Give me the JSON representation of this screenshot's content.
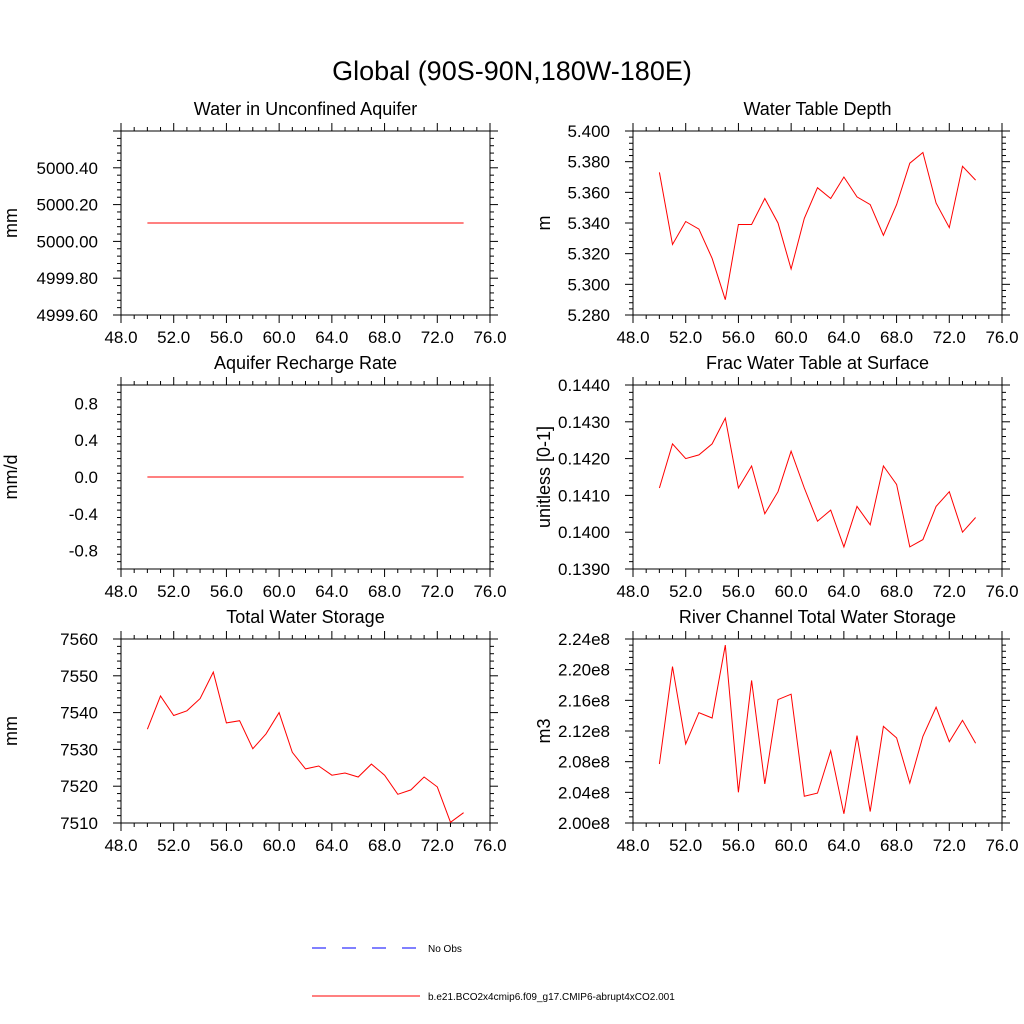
{
  "page_title": "Global (90S-90N,180W-180E)",
  "colors": {
    "model": "#ff0000",
    "obs": "#0000ff",
    "axis": "#000000"
  },
  "legend": {
    "obs_label": "No Obs",
    "model_label": "b.e21.BCO2x4cmip6.f09_g17.CMIP6-abrupt4xCO2.001"
  },
  "chart_data": [
    {
      "type": "line",
      "title": "Water in Unconfined Aquifer",
      "ylabel": "mm",
      "xlim": [
        48,
        76
      ],
      "ylim": [
        4999.6,
        5000.6
      ],
      "xticks": [
        48,
        52,
        56,
        60,
        64,
        68,
        72,
        76
      ],
      "xtick_labels": [
        "48.0",
        "52.0",
        "56.0",
        "60.0",
        "64.0",
        "68.0",
        "72.0",
        "76.0"
      ],
      "yticks": [
        4999.6,
        4999.8,
        5000.0,
        5000.2,
        5000.4
      ],
      "ytick_labels": [
        "4999.60",
        "4999.80",
        "5000.00",
        "5000.20",
        "5000.40"
      ],
      "series": [
        {
          "x": [
            50,
            74
          ],
          "values": [
            5000.1,
            5000.1
          ]
        }
      ]
    },
    {
      "type": "line",
      "title": "Water Table Depth",
      "ylabel": "m",
      "xlim": [
        48,
        76
      ],
      "ylim": [
        5.28,
        5.4
      ],
      "xticks": [
        48,
        52,
        56,
        60,
        64,
        68,
        72,
        76
      ],
      "xtick_labels": [
        "48.0",
        "52.0",
        "56.0",
        "60.0",
        "64.0",
        "68.0",
        "72.0",
        "76.0"
      ],
      "yticks": [
        5.28,
        5.3,
        5.32,
        5.34,
        5.36,
        5.38,
        5.4
      ],
      "ytick_labels": [
        "5.280",
        "5.300",
        "5.320",
        "5.340",
        "5.360",
        "5.380",
        "5.400"
      ],
      "series": [
        {
          "x": [
            50,
            51,
            52,
            53,
            54,
            55,
            56,
            57,
            58,
            59,
            60,
            61,
            62,
            63,
            64,
            65,
            66,
            67,
            68,
            69,
            70,
            71,
            72,
            73,
            74
          ],
          "values": [
            5.373,
            5.326,
            5.341,
            5.336,
            5.317,
            5.29,
            5.339,
            5.339,
            5.356,
            5.34,
            5.31,
            5.343,
            5.363,
            5.356,
            5.37,
            5.357,
            5.352,
            5.332,
            5.352,
            5.379,
            5.386,
            5.353,
            5.337,
            5.377,
            5.368
          ]
        }
      ]
    },
    {
      "type": "line",
      "title": "Aquifer Recharge Rate",
      "ylabel": "mm/d",
      "xlim": [
        48,
        76
      ],
      "ylim": [
        -1.0,
        1.0
      ],
      "xticks": [
        48,
        52,
        56,
        60,
        64,
        68,
        72,
        76
      ],
      "xtick_labels": [
        "48.0",
        "52.0",
        "56.0",
        "60.0",
        "64.0",
        "68.0",
        "72.0",
        "76.0"
      ],
      "yticks": [
        -0.8,
        -0.4,
        0.0,
        0.4,
        0.8
      ],
      "ytick_labels": [
        "-0.8",
        "-0.4",
        "0.0",
        "0.4",
        "0.8"
      ],
      "series": [
        {
          "x": [
            50,
            74
          ],
          "values": [
            0.0,
            0.0
          ]
        }
      ]
    },
    {
      "type": "line",
      "title": "Frac Water Table at Surface",
      "ylabel": "unitless [0-1]",
      "xlim": [
        48,
        76
      ],
      "ylim": [
        0.139,
        0.144
      ],
      "xticks": [
        48,
        52,
        56,
        60,
        64,
        68,
        72,
        76
      ],
      "xtick_labels": [
        "48.0",
        "52.0",
        "56.0",
        "60.0",
        "64.0",
        "68.0",
        "72.0",
        "76.0"
      ],
      "yticks": [
        0.139,
        0.14,
        0.141,
        0.142,
        0.143,
        0.144
      ],
      "ytick_labels": [
        "0.1390",
        "0.1400",
        "0.1410",
        "0.1420",
        "0.1430",
        "0.1440"
      ],
      "series": [
        {
          "x": [
            50,
            51,
            52,
            53,
            54,
            55,
            56,
            57,
            58,
            59,
            60,
            61,
            62,
            63,
            64,
            65,
            66,
            67,
            68,
            69,
            70,
            71,
            72,
            73,
            74
          ],
          "values": [
            0.1412,
            0.1424,
            0.142,
            0.1421,
            0.1424,
            0.1431,
            0.1412,
            0.1418,
            0.1405,
            0.1411,
            0.1422,
            0.1412,
            0.1403,
            0.1406,
            0.1396,
            0.1407,
            0.1402,
            0.1418,
            0.1413,
            0.1396,
            0.1398,
            0.1407,
            0.1411,
            0.14,
            0.1404
          ]
        }
      ]
    },
    {
      "type": "line",
      "title": "Total Water Storage",
      "ylabel": "mm",
      "xlim": [
        48,
        76
      ],
      "ylim": [
        7510,
        7560
      ],
      "xticks": [
        48,
        52,
        56,
        60,
        64,
        68,
        72,
        76
      ],
      "xtick_labels": [
        "48.0",
        "52.0",
        "56.0",
        "60.0",
        "64.0",
        "68.0",
        "72.0",
        "76.0"
      ],
      "yticks": [
        7510,
        7520,
        7530,
        7540,
        7550,
        7560
      ],
      "ytick_labels": [
        "7510",
        "7520",
        "7530",
        "7540",
        "7550",
        "7560"
      ],
      "series": [
        {
          "x": [
            50,
            51,
            52,
            53,
            54,
            55,
            56,
            57,
            58,
            59,
            60,
            61,
            62,
            63,
            64,
            65,
            66,
            67,
            68,
            69,
            70,
            71,
            72,
            73,
            74
          ],
          "values": [
            7535.5,
            7544.5,
            7539.2,
            7540.5,
            7543.8,
            7551.0,
            7537.2,
            7537.8,
            7530.2,
            7534.2,
            7540.0,
            7529.2,
            7524.7,
            7525.5,
            7523.0,
            7523.6,
            7522.5,
            7526.0,
            7523.0,
            7517.8,
            7519.0,
            7522.5,
            7519.8,
            7510.2,
            7512.8
          ]
        }
      ]
    },
    {
      "type": "line",
      "title": "River Channel Total Water Storage",
      "ylabel": "m3",
      "xlim": [
        48,
        76
      ],
      "ylim": [
        200000000.0,
        224000000.0
      ],
      "xticks": [
        48,
        52,
        56,
        60,
        64,
        68,
        72,
        76
      ],
      "xtick_labels": [
        "48.0",
        "52.0",
        "56.0",
        "60.0",
        "64.0",
        "68.0",
        "72.0",
        "76.0"
      ],
      "yticks": [
        200000000.0,
        204000000.0,
        208000000.0,
        212000000.0,
        216000000.0,
        220000000.0,
        224000000.0
      ],
      "ytick_labels": [
        "2.00e8",
        "2.04e8",
        "2.08e8",
        "2.12e8",
        "2.16e8",
        "2.20e8",
        "2.24e8"
      ],
      "series": [
        {
          "x": [
            50,
            51,
            52,
            53,
            54,
            55,
            56,
            57,
            58,
            59,
            60,
            61,
            62,
            63,
            64,
            65,
            66,
            67,
            68,
            69,
            70,
            71,
            72,
            73,
            74
          ],
          "values": [
            207700000.0,
            220400000.0,
            210300000.0,
            214400000.0,
            213700000.0,
            223200000.0,
            204000000.0,
            218600000.0,
            205100000.0,
            216100000.0,
            216800000.0,
            203500000.0,
            203900000.0,
            209400000.0,
            201200000.0,
            211400000.0,
            201500000.0,
            212600000.0,
            211100000.0,
            205200000.0,
            211300000.0,
            215100000.0,
            210600000.0,
            213400000.0,
            210400000.0
          ]
        }
      ]
    }
  ]
}
